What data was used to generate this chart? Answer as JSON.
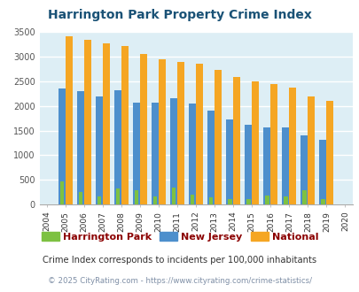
{
  "title": "Harrington Park Property Crime Index",
  "years": [
    2004,
    2005,
    2006,
    2007,
    2008,
    2009,
    2010,
    2011,
    2012,
    2013,
    2014,
    2015,
    2016,
    2017,
    2018,
    2019,
    2020
  ],
  "harrington_park": [
    0,
    470,
    250,
    165,
    330,
    290,
    155,
    350,
    195,
    135,
    105,
    105,
    185,
    155,
    285,
    105,
    0
  ],
  "new_jersey": [
    0,
    2360,
    2305,
    2200,
    2310,
    2065,
    2070,
    2165,
    2050,
    1905,
    1720,
    1615,
    1555,
    1555,
    1395,
    1315,
    0
  ],
  "national": [
    0,
    3420,
    3335,
    3270,
    3210,
    3050,
    2950,
    2900,
    2850,
    2730,
    2590,
    2490,
    2450,
    2365,
    2200,
    2110,
    0
  ],
  "colors": {
    "harrington_park": "#7dc142",
    "new_jersey": "#4d8fcc",
    "national": "#f5a623"
  },
  "ylim": [
    0,
    3500
  ],
  "yticks": [
    0,
    500,
    1000,
    1500,
    2000,
    2500,
    3000,
    3500
  ],
  "bg_color": "#ddeef5",
  "grid_color": "#ffffff",
  "title_color": "#1a5276",
  "legend_labels": [
    "Harrington Park",
    "New Jersey",
    "National"
  ],
  "legend_text_color": "#8B0000",
  "footnote1": "Crime Index corresponds to incidents per 100,000 inhabitants",
  "footnote2": "© 2025 CityRating.com - https://www.cityrating.com/crime-statistics/",
  "footnote1_color": "#333333",
  "footnote2_color": "#7f8fa6"
}
